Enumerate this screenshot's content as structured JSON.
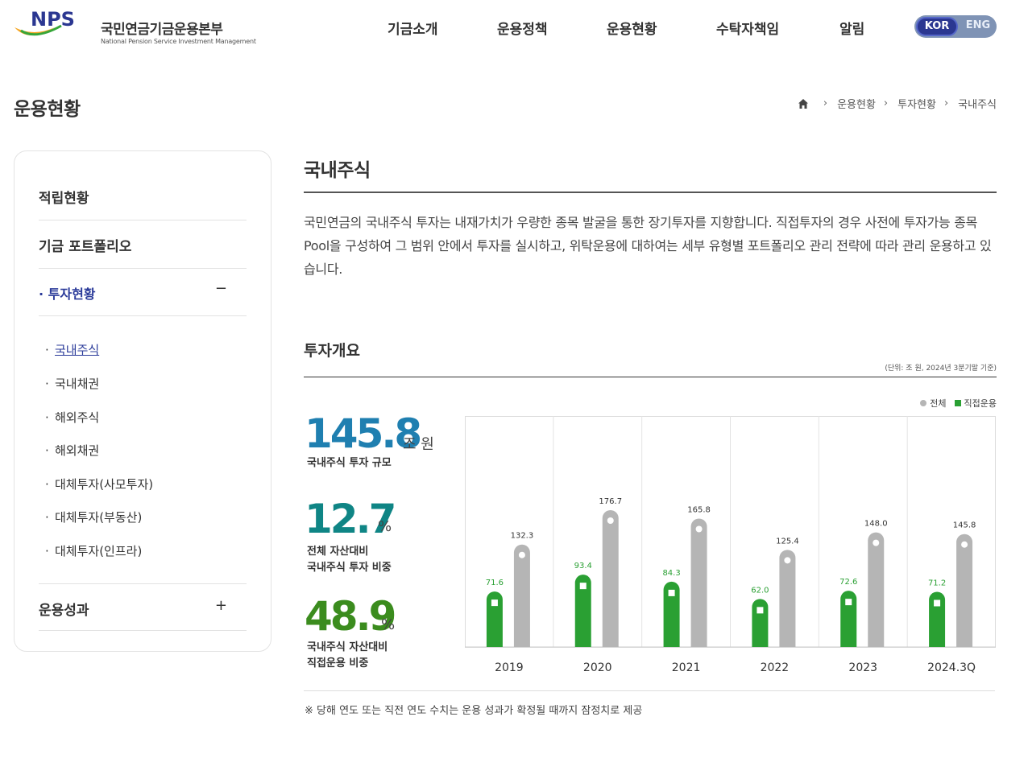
{
  "header": {
    "logo_mark": "NPS",
    "logo_kor": "국민연금기금운용본부",
    "logo_eng": "National Pension Service Investment Management",
    "nav": [
      "기금소개",
      "운용정책",
      "운용현황",
      "수탁자책임",
      "알림"
    ],
    "lang": {
      "kor": "KOR",
      "eng": "ENG"
    }
  },
  "page_title": "운용현황",
  "breadcrumb": {
    "home_icon": "home-icon",
    "items": [
      "운용현황",
      "투자현황",
      "국내주식"
    ]
  },
  "lnb": {
    "items": [
      {
        "label": "적립현황"
      },
      {
        "label": "기금 포트폴리오"
      },
      {
        "label": "· 투자현황",
        "toggle": "−"
      },
      {
        "label": "운용성과",
        "toggle": "+"
      }
    ],
    "sub": [
      "국내주식",
      "국내채권",
      "해외주식",
      "해외채권",
      "대체투자(사모투자)",
      "대체투자(부동산)",
      "대체투자(인프라)"
    ]
  },
  "content": {
    "title": "국내주식",
    "intro": "국민연금의 국내주식 투자는 내재가치가 우량한 종목 발굴을 통한 장기투자를 지향합니다. 직접투자의 경우 사전에 투자가능 종목 Pool을 구성하여 그 범위 안에서 투자를 실시하고, 위탁운용에 대하여는 세부 유형별 포트폴리오 관리 전략에 따라 관리 운용하고 있습니다.",
    "section_title": "투자개요",
    "unit": "(단위: 조 원, 2024년 3분기말 기준)",
    "footnote": "※  당해 연도 또는 직전 연도 수치는 운용 성과가 확정될 때까지 잠정치로 제공"
  },
  "stats": [
    {
      "value": "145.8",
      "unit": "조 원",
      "label": "국내주식 투자 규모",
      "color": "#1f7fb0"
    },
    {
      "value": "12.7",
      "unit": "%",
      "label": "전체 자산대비\n국내주식 투자 비중",
      "color": "#0f8585"
    },
    {
      "value": "48.9",
      "unit": "%",
      "label": "국내주식 자산대비\n직접운용 비중",
      "color": "#3b8c1e"
    }
  ],
  "chart_data": {
    "type": "bar",
    "categories": [
      "2019",
      "2020",
      "2021",
      "2022",
      "2023",
      "2024.3Q"
    ],
    "series": [
      {
        "name": "직접운용",
        "values": [
          71.6,
          93.4,
          84.3,
          62.0,
          72.6,
          71.2
        ],
        "color": "#2aa033"
      },
      {
        "name": "전체",
        "values": [
          132.3,
          176.7,
          165.8,
          125.4,
          148.0,
          145.8
        ],
        "color": "#b5b5b5"
      }
    ],
    "legend": [
      "전체",
      "직접운용"
    ],
    "legend_position": "top-right",
    "ylim": [
      0,
      200
    ]
  }
}
